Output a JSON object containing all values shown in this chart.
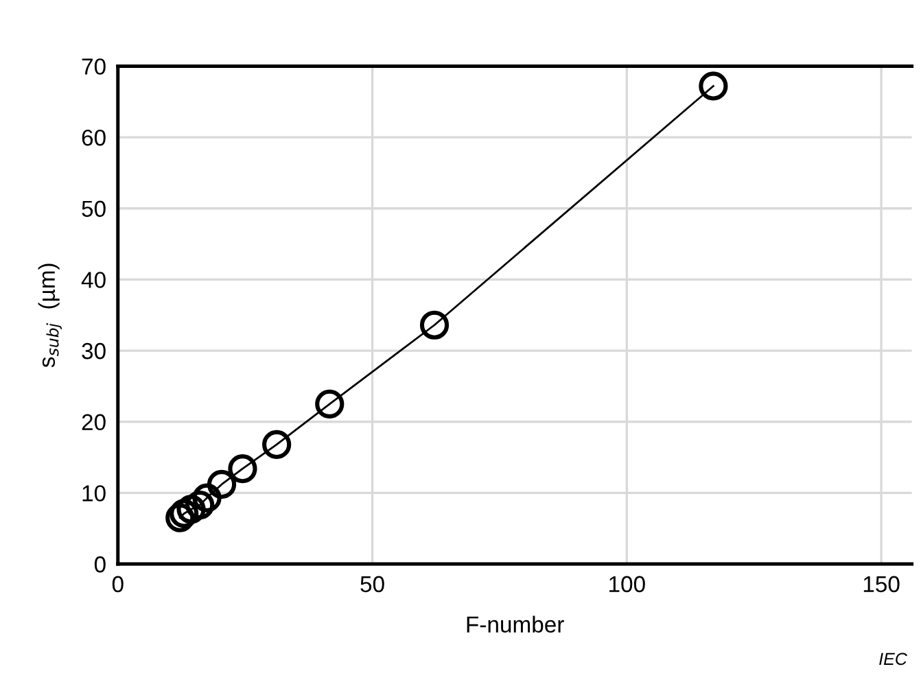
{
  "chart_data": {
    "type": "line",
    "xlabel": "F-number",
    "ylabel": "s$_{subj}$  (µm)",
    "annotations": [
      "IEC"
    ],
    "series": [
      {
        "color": "#000000",
        "x": [
          12.2,
          13.0,
          14.4,
          16.1,
          17.5,
          20.4,
          24.5,
          31.2,
          41.6,
          62.2,
          117
        ],
        "values": [
          6.5,
          7.1,
          7.7,
          8.3,
          9.3,
          11.2,
          13.4,
          16.8,
          22.5,
          33.6,
          67.2
        ]
      }
    ],
    "xlim": [
      0,
      156
    ],
    "xticks": [
      0,
      50,
      100,
      150
    ],
    "ylim": [
      0,
      70
    ],
    "yticks": [
      0,
      10,
      20,
      30,
      40,
      50,
      60,
      70
    ],
    "grid": true,
    "marker": "circle",
    "line_style": "solid"
  }
}
